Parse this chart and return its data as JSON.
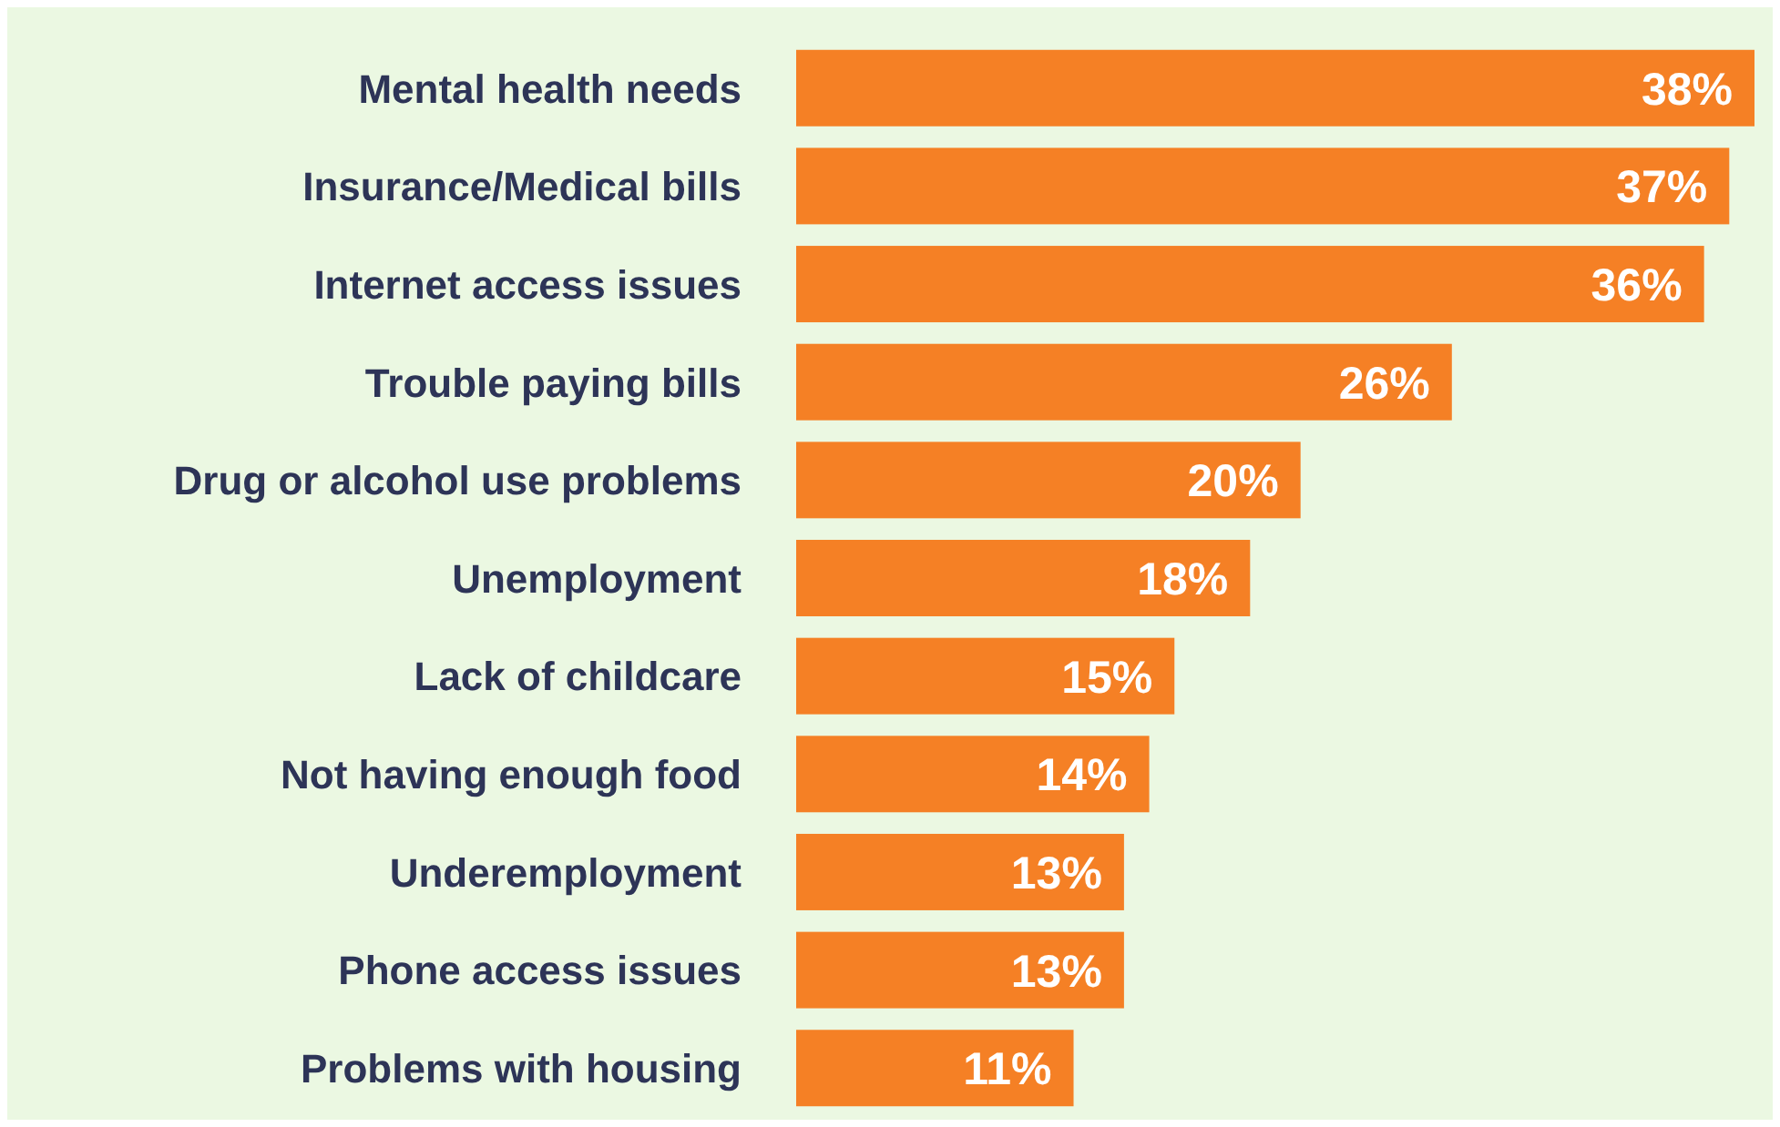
{
  "chart_data": {
    "type": "bar",
    "orientation": "horizontal",
    "categories": [
      "Mental health needs",
      "Insurance/Medical bills",
      "Internet access issues",
      "Trouble paying bills",
      "Drug or alcohol use problems",
      "Unemployment",
      "Lack of childcare",
      "Not having enough food",
      "Underemployment",
      "Phone access issues",
      "Problems with housing"
    ],
    "values": [
      38,
      37,
      36,
      26,
      20,
      18,
      15,
      14,
      13,
      13,
      11
    ],
    "value_labels": [
      "38%",
      "37%",
      "36%",
      "26%",
      "20%",
      "18%",
      "15%",
      "14%",
      "13%",
      "13%",
      "11%"
    ],
    "color": "#f58025"
  }
}
